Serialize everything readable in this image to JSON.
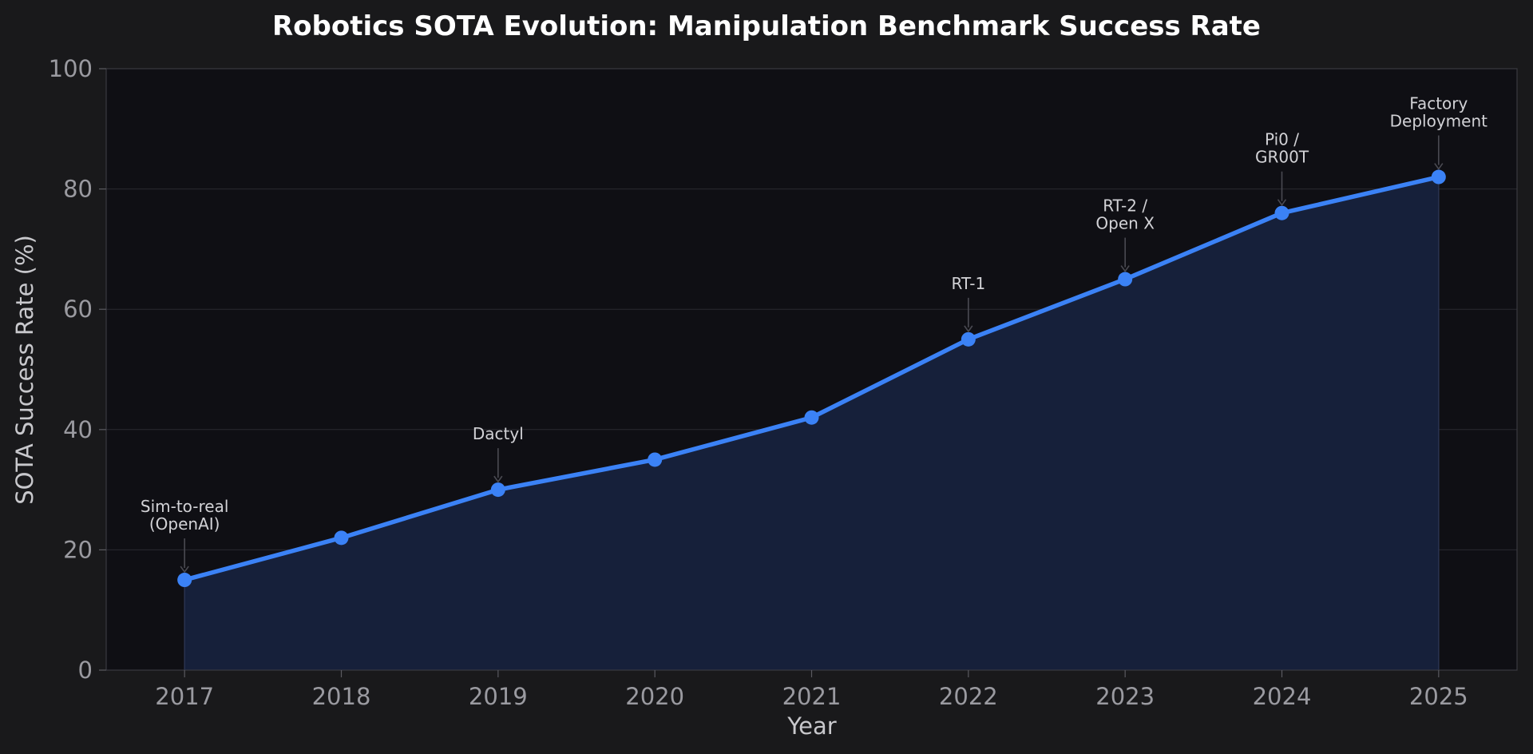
{
  "chart_data": {
    "type": "area",
    "title": "Robotics SOTA Evolution: Manipulation Benchmark Success Rate",
    "xlabel": "Year",
    "ylabel": "SOTA Success Rate (%)",
    "x": [
      2017,
      2018,
      2019,
      2020,
      2021,
      2022,
      2023,
      2024,
      2025
    ],
    "series": [
      {
        "values": [
          15,
          22,
          30,
          35,
          42,
          55,
          65,
          76,
          82
        ]
      }
    ],
    "ylim": [
      0,
      100
    ],
    "xlim": [
      2016.5,
      2025.5
    ],
    "yticks": [
      0,
      20,
      40,
      60,
      80,
      100
    ],
    "xticks": [
      2017,
      2018,
      2019,
      2020,
      2021,
      2022,
      2023,
      2024,
      2025
    ],
    "grid": true,
    "legend": "none",
    "annotations": [
      {
        "x": 2017,
        "y": 15,
        "lines": [
          "Sim-to-real",
          "(OpenAI)"
        ]
      },
      {
        "x": 2019,
        "y": 30,
        "lines": [
          "Dactyl"
        ]
      },
      {
        "x": 2022,
        "y": 55,
        "lines": [
          "RT-1"
        ]
      },
      {
        "x": 2023,
        "y": 65,
        "lines": [
          "RT-2 /",
          "Open X"
        ]
      },
      {
        "x": 2024,
        "y": 76,
        "lines": [
          "Pi0 /",
          "GR00T"
        ]
      },
      {
        "x": 2025,
        "y": 82,
        "lines": [
          "Factory",
          "Deployment"
        ]
      }
    ],
    "colors": {
      "line": "#3b82f6",
      "fill": "#16203a",
      "background": "#19191b",
      "plot_background": "#0f0f14"
    }
  }
}
